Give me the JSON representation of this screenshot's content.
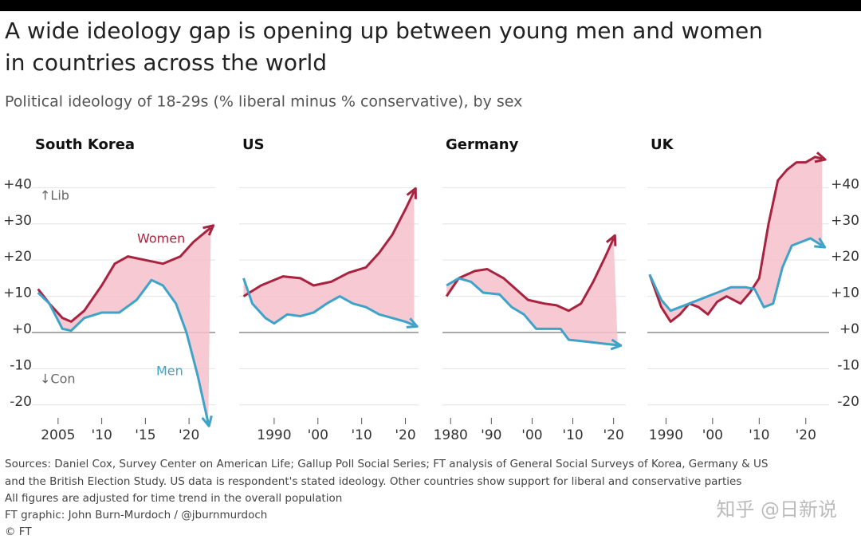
{
  "title_lines": [
    "A wide ideology gap is opening up between young men and women",
    "in countries across the world"
  ],
  "subtitle": "Political ideology of 18-29s (% liberal minus % conservative), by sex",
  "source_lines": [
    "Sources: Daniel Cox, Survey Center on American Life; Gallup Poll Social Series; FT analysis of General Social Surveys of Korea, Germany & US",
    "and the British Election Study. US data is respondent's stated ideology. Other countries show support for liberal and conservative parties",
    "All figures are adjusted for time trend in the overall population",
    "FT graphic: John Burn-Murdoch / @jburnmurdoch",
    "© FT"
  ],
  "watermark": "知乎 @日新说",
  "chart_data": [
    {
      "type": "line",
      "title": "South Korea",
      "xlim": [
        2002,
        2023
      ],
      "ylim": [
        -26,
        50
      ],
      "xticks": [
        2005,
        {
          "value": 2010,
          "label": "'10"
        },
        {
          "value": 2015,
          "label": "'15"
        },
        {
          "value": 2020,
          "label": "'20"
        }
      ],
      "yticks": [
        {
          "value": 40,
          "label": "+40"
        },
        {
          "value": 30,
          "label": "+30"
        },
        {
          "value": 20,
          "label": "+20"
        },
        {
          "value": 10,
          "label": "+10"
        },
        {
          "value": 0,
          "label": "+0"
        },
        -10,
        -20
      ],
      "ytick_side": "left",
      "grid": true,
      "fill_gap": "#f6bfca",
      "annotations": [
        "↑Lib",
        "↓Con"
      ],
      "series": [
        {
          "name": "Women",
          "color": "#a8233f",
          "x": [
            2002.7,
            2004,
            2005.5,
            2006.5,
            2008,
            2010,
            2011.5,
            2013,
            2015,
            2017,
            2019,
            2020.5,
            2022.5
          ],
          "values": [
            12,
            8,
            4,
            3,
            6,
            13,
            19,
            21,
            20,
            19,
            21,
            25,
            29
          ]
        },
        {
          "name": "Men",
          "color": "#3ea3c8",
          "x": [
            2002.7,
            2004,
            2005.5,
            2006.5,
            2008,
            2010,
            2012,
            2014,
            2015.7,
            2017,
            2018.5,
            2019.7,
            2021,
            2022.2
          ],
          "values": [
            11,
            8,
            1,
            0.5,
            4,
            5.5,
            5.5,
            9,
            14.5,
            13,
            8,
            0,
            -12,
            -25
          ]
        }
      ]
    },
    {
      "type": "line",
      "title": "US",
      "xlim": [
        1982,
        2023
      ],
      "ylim": [
        -26,
        50
      ],
      "xticks": [
        1990,
        {
          "value": 2000,
          "label": "'00"
        },
        {
          "value": 2010,
          "label": "'10"
        },
        {
          "value": 2020,
          "label": "'20"
        }
      ],
      "yticks": [
        {
          "value": 40,
          "label": "+40"
        },
        {
          "value": 30,
          "label": "+30"
        },
        {
          "value": 20,
          "label": "+20"
        },
        {
          "value": 10,
          "label": "+10"
        },
        {
          "value": 0,
          "label": "+0"
        },
        -10,
        -20
      ],
      "ytick_side": "none",
      "grid": true,
      "fill_gap": "#f6bfca",
      "series": [
        {
          "name": "Women",
          "color": "#a8233f",
          "x": [
            1983,
            1987,
            1992,
            1996,
            1999,
            2003,
            2007,
            2011,
            2014,
            2017,
            2020,
            2022
          ],
          "values": [
            10,
            13,
            15.5,
            15,
            13,
            14,
            16.5,
            18,
            22,
            27,
            34,
            39
          ]
        },
        {
          "name": "Men",
          "color": "#3ea3c8",
          "x": [
            1983,
            1985,
            1988,
            1990,
            1993,
            1996,
            1999,
            2002,
            2005,
            2008,
            2011,
            2014,
            2017,
            2020,
            2022
          ],
          "values": [
            15,
            8,
            4,
            2.5,
            5,
            4.5,
            5.5,
            8,
            10,
            8,
            7,
            5,
            4,
            3,
            2
          ]
        }
      ]
    },
    {
      "type": "line",
      "title": "Germany",
      "xlim": [
        1978,
        2023
      ],
      "ylim": [
        -26,
        50
      ],
      "xticks": [
        1980,
        {
          "value": 1990,
          "label": "'90"
        },
        {
          "value": 2000,
          "label": "'00"
        },
        {
          "value": 2010,
          "label": "'10"
        },
        {
          "value": 2020,
          "label": "'20"
        }
      ],
      "yticks": [
        {
          "value": 40,
          "label": "+40"
        },
        {
          "value": 30,
          "label": "+30"
        },
        {
          "value": 20,
          "label": "+20"
        },
        {
          "value": 10,
          "label": "+10"
        },
        {
          "value": 0,
          "label": "+0"
        },
        -10,
        -20
      ],
      "ytick_side": "none",
      "grid": true,
      "fill_gap": "#f6bfca",
      "series": [
        {
          "name": "Women",
          "color": "#a8233f",
          "x": [
            1979,
            1982,
            1986,
            1989,
            1993,
            1996,
            1999,
            2003,
            2006,
            2009,
            2012,
            2015,
            2018,
            2020
          ],
          "values": [
            10,
            15,
            17,
            17.5,
            15,
            12,
            9,
            8,
            7.5,
            6,
            8,
            14,
            21,
            26
          ]
        },
        {
          "name": "Men",
          "color": "#3ea3c8",
          "x": [
            1979,
            1982,
            1985,
            1988,
            1992,
            1995,
            1998,
            2001,
            2004,
            2007,
            2009,
            2013,
            2017,
            2021
          ],
          "values": [
            13,
            15,
            14,
            11,
            10.5,
            7,
            5,
            1,
            1,
            1,
            -2,
            -2.5,
            -3,
            -3.5
          ]
        }
      ]
    },
    {
      "type": "line",
      "title": "UK",
      "xlim": [
        1986,
        2025
      ],
      "ylim": [
        -26,
        50
      ],
      "xticks": [
        1990,
        {
          "value": 2000,
          "label": "'00"
        },
        {
          "value": 2010,
          "label": "'10"
        },
        {
          "value": 2020,
          "label": "'20"
        }
      ],
      "yticks": [
        {
          "value": 40,
          "label": "+40"
        },
        {
          "value": 30,
          "label": "+30"
        },
        {
          "value": 20,
          "label": "+20"
        },
        {
          "value": 10,
          "label": "+10"
        },
        {
          "value": 0,
          "label": "+0"
        },
        -10,
        -20
      ],
      "ytick_side": "right",
      "grid": true,
      "fill_gap": "#f6bfca",
      "series": [
        {
          "name": "Women",
          "color": "#a8233f",
          "x": [
            1986.5,
            1989,
            1991,
            1993,
            1995,
            1997,
            1999,
            2001,
            2003,
            2006,
            2008,
            2010,
            2012,
            2014,
            2016,
            2018,
            2020,
            2022,
            2023.5
          ],
          "values": [
            16,
            7,
            3,
            5,
            8,
            7,
            5,
            8.5,
            10,
            8,
            11,
            15,
            30,
            42,
            45,
            47,
            47,
            48.5,
            48
          ]
        },
        {
          "name": "Men",
          "color": "#3ea3c8",
          "x": [
            1986.5,
            1989,
            1991,
            1993,
            1995,
            1998,
            2001,
            2004,
            2007,
            2009,
            2011,
            2013,
            2015,
            2017,
            2019,
            2021,
            2023.5
          ],
          "values": [
            16,
            9,
            6,
            7,
            8,
            9.5,
            11,
            12.5,
            12.5,
            12,
            7,
            8,
            18,
            24,
            25,
            26,
            24
          ]
        }
      ]
    }
  ]
}
